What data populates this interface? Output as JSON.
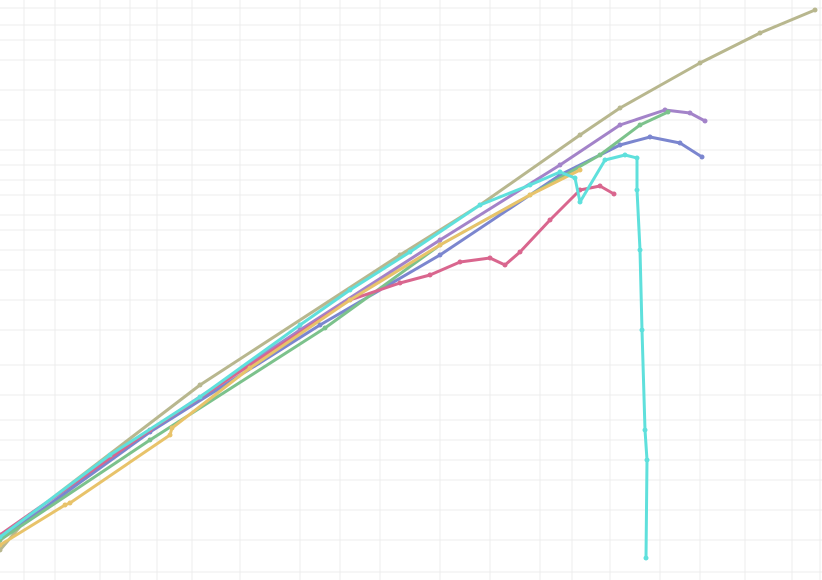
{
  "chart_data": {
    "type": "line",
    "grid": true,
    "xlim": [
      0,
      822
    ],
    "ylim": [
      0,
      580
    ],
    "xticks": [
      24,
      55,
      100,
      130,
      157,
      192,
      240,
      300,
      340,
      380,
      440,
      490,
      540,
      572,
      610,
      660,
      700,
      745,
      792,
      820
    ],
    "yticks": [
      8,
      40,
      70,
      100,
      120,
      140,
      160,
      185,
      215,
      250,
      280,
      310,
      330,
      350,
      365,
      385,
      400,
      415,
      430,
      460,
      490,
      520,
      540,
      555,
      572
    ],
    "series": [
      {
        "color": "#b8b78e",
        "x": [
          0,
          30,
          200,
          400,
          480,
          580,
          620,
          700,
          760,
          815
        ],
        "values": [
          30,
          65,
          195,
          325,
          375,
          445,
          472,
          517,
          547,
          570
        ]
      },
      {
        "color": "#a383c9",
        "x": [
          0,
          150,
          300,
          440,
          560,
          620,
          665,
          690,
          705
        ],
        "values": [
          45,
          150,
          250,
          340,
          415,
          455,
          470,
          467,
          459
        ]
      },
      {
        "color": "#7b86cf",
        "x": [
          0,
          150,
          320,
          440,
          560,
          620,
          650,
          680,
          702
        ],
        "values": [
          40,
          148,
          255,
          325,
          405,
          435,
          443,
          437,
          423
        ]
      },
      {
        "color": "#7cc28c",
        "x": [
          0,
          150,
          325,
          440,
          530,
          600,
          640,
          668
        ],
        "values": [
          40,
          140,
          252,
          335,
          385,
          425,
          455,
          468
        ]
      },
      {
        "color": "#d9668e",
        "x": [
          0,
          150,
          350,
          400,
          430,
          460,
          490,
          505,
          520,
          550,
          580,
          600,
          614
        ],
        "values": [
          45,
          150,
          280,
          297,
          305,
          318,
          322,
          315,
          328,
          360,
          390,
          394,
          386
        ]
      },
      {
        "color": "#e8c36a",
        "x": [
          0,
          65,
          70,
          170,
          172,
          250,
          350,
          440,
          530,
          580
        ],
        "values": [
          35,
          75,
          77,
          145,
          152,
          212,
          280,
          335,
          385,
          410
        ]
      },
      {
        "color": "#5fe0dc",
        "x": [
          0,
          110,
          200,
          300,
          350,
          410,
          480,
          530,
          560,
          575,
          580,
          605,
          625,
          637,
          637,
          640,
          642,
          645,
          647,
          646
        ],
        "values": [
          43,
          125,
          183,
          255,
          290,
          328,
          375,
          395,
          408,
          402,
          378,
          420,
          425,
          422,
          390,
          330,
          250,
          150,
          120,
          22
        ]
      }
    ]
  }
}
